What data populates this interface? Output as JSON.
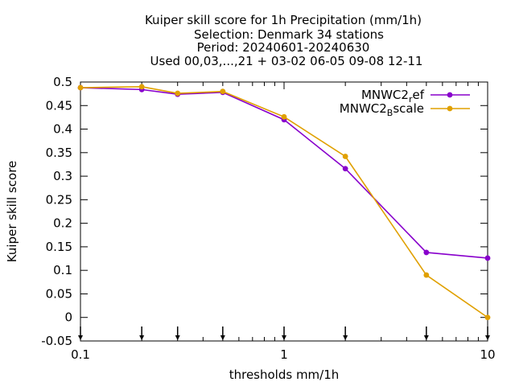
{
  "chart_data": {
    "type": "line",
    "title_lines": [
      "Kuiper skill score  for 1h Precipitation (mm/1h)",
      "Selection: Denmark     34 stations",
      "Period: 20240601-20240630",
      "Used 00,03,...,21 + 03-02 06-05 09-08 12-11"
    ],
    "xlabel": "thresholds mm/1h",
    "ylabel": "Kuiper skill score",
    "xscale": "log",
    "xlim": [
      0.1,
      10
    ],
    "ylim": [
      -0.05,
      0.5
    ],
    "xticks": [
      0.1,
      1,
      10
    ],
    "xtick_labels": [
      "0.1",
      "1",
      "10"
    ],
    "yticks": [
      -0.05,
      0,
      0.05,
      0.1,
      0.15,
      0.2,
      0.25,
      0.3,
      0.35,
      0.4,
      0.45,
      0.5
    ],
    "ytick_labels": [
      "-0.05",
      "0",
      "0.05",
      "0.1",
      "0.15",
      "0.2",
      "0.25",
      "0.3",
      "0.35",
      "0.4",
      "0.45",
      "0.5"
    ],
    "x": [
      0.1,
      0.2,
      0.3,
      0.5,
      1,
      2,
      5,
      10
    ],
    "arrow_markers_x": [
      0.1,
      0.2,
      0.3,
      0.5,
      1,
      2,
      5,
      10
    ],
    "legend_position": "top-right",
    "grid": false,
    "series": [
      {
        "name_main": "MNWC2",
        "name_sub": "r",
        "name_rest": "ef",
        "color": "#8800cc",
        "values": [
          0.488,
          0.484,
          0.474,
          0.478,
          0.42,
          0.316,
          0.138,
          0.126
        ]
      },
      {
        "name_main": "MNWC2",
        "name_sub": "B",
        "name_rest": "scale",
        "color": "#e0a000",
        "values": [
          0.488,
          0.49,
          0.476,
          0.48,
          0.426,
          0.342,
          0.09,
          0.0
        ]
      }
    ]
  }
}
